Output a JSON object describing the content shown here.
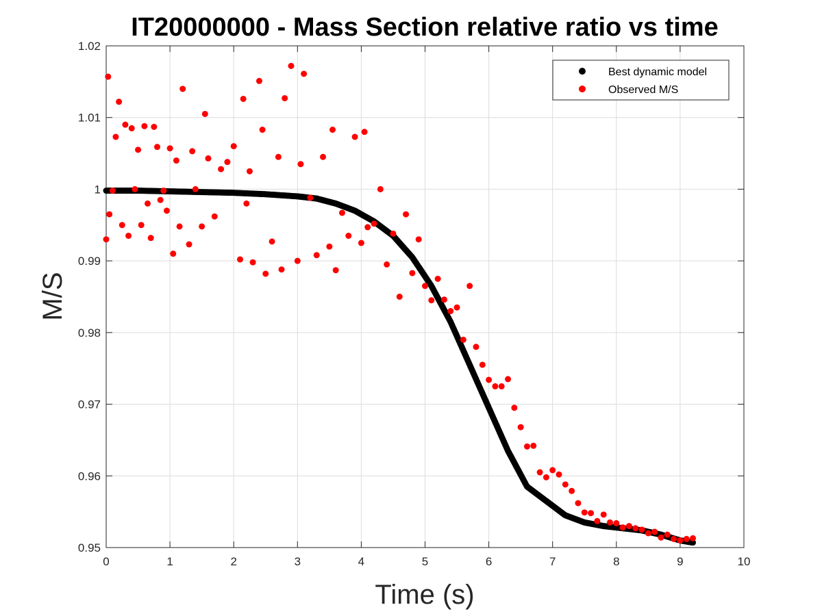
{
  "chart_data": {
    "type": "scatter",
    "title": "IT20000000 - Mass Section relative ratio vs time",
    "xlabel": "Time (s)",
    "ylabel": "M/S",
    "xlim": [
      0,
      10
    ],
    "ylim": [
      0.95,
      1.02
    ],
    "xticks": [
      0,
      1,
      2,
      3,
      4,
      5,
      6,
      7,
      8,
      9,
      10
    ],
    "yticks": [
      0.95,
      0.96,
      0.97,
      0.98,
      0.99,
      1.0,
      1.01,
      1.02
    ],
    "xtick_labels": [
      "0",
      "1",
      "2",
      "3",
      "4",
      "5",
      "6",
      "7",
      "8",
      "9",
      "10"
    ],
    "ytick_labels": [
      "0.95",
      "0.96",
      "0.97",
      "0.98",
      "0.99",
      "1",
      "1.01",
      "1.02"
    ],
    "grid": true,
    "legend_position": "top-right",
    "series": [
      {
        "name": "Best dynamic model",
        "color": "#000000",
        "marker": "filled-circle",
        "x": [
          0.0,
          0.5,
          1.0,
          1.5,
          2.0,
          2.5,
          3.0,
          3.3,
          3.6,
          3.9,
          4.2,
          4.5,
          4.8,
          5.1,
          5.4,
          5.7,
          6.0,
          6.3,
          6.6,
          6.9,
          7.2,
          7.5,
          7.8,
          8.1,
          8.4,
          8.7,
          9.0,
          9.2
        ],
        "y": [
          0.9998,
          0.9998,
          0.9997,
          0.9996,
          0.9995,
          0.9993,
          0.999,
          0.9987,
          0.998,
          0.997,
          0.9955,
          0.9935,
          0.9905,
          0.9865,
          0.9815,
          0.9755,
          0.9695,
          0.9635,
          0.9585,
          0.9565,
          0.9545,
          0.9535,
          0.953,
          0.9527,
          0.9524,
          0.9518,
          0.951,
          0.9507
        ]
      },
      {
        "name": "Observed M/S",
        "color": "#ff0000",
        "marker": "filled-circle",
        "x": [
          0.0,
          0.03,
          0.05,
          0.1,
          0.15,
          0.2,
          0.25,
          0.3,
          0.35,
          0.4,
          0.45,
          0.5,
          0.55,
          0.6,
          0.65,
          0.7,
          0.75,
          0.8,
          0.85,
          0.9,
          0.95,
          1.0,
          1.05,
          1.1,
          1.15,
          1.2,
          1.3,
          1.35,
          1.4,
          1.5,
          1.55,
          1.6,
          1.7,
          1.8,
          1.9,
          2.0,
          2.1,
          2.15,
          2.2,
          2.25,
          2.3,
          2.4,
          2.45,
          2.5,
          2.6,
          2.7,
          2.75,
          2.8,
          2.9,
          3.0,
          3.05,
          3.1,
          3.2,
          3.3,
          3.4,
          3.5,
          3.55,
          3.6,
          3.7,
          3.8,
          3.9,
          4.0,
          4.05,
          4.1,
          4.2,
          4.3,
          4.4,
          4.5,
          4.6,
          4.7,
          4.8,
          4.9,
          5.0,
          5.1,
          5.2,
          5.3,
          5.4,
          5.5,
          5.6,
          5.7,
          5.8,
          5.9,
          6.0,
          6.1,
          6.2,
          6.3,
          6.4,
          6.5,
          6.6,
          6.7,
          6.8,
          6.9,
          7.0,
          7.1,
          7.2,
          7.3,
          7.4,
          7.5,
          7.6,
          7.7,
          7.8,
          7.9,
          8.0,
          8.1,
          8.2,
          8.3,
          8.4,
          8.5,
          8.6,
          8.7,
          8.8,
          8.9,
          9.0,
          9.1,
          9.2
        ],
        "y": [
          0.993,
          1.0157,
          0.9965,
          0.9998,
          1.0073,
          1.0122,
          0.995,
          1.009,
          0.9935,
          1.0085,
          1.0,
          1.0055,
          0.995,
          1.0088,
          0.998,
          0.9932,
          1.0087,
          1.0059,
          0.9985,
          0.9998,
          0.997,
          1.0057,
          0.991,
          1.004,
          0.9948,
          1.014,
          0.9923,
          1.0053,
          1.0,
          0.9948,
          1.0105,
          1.0043,
          0.9962,
          1.0028,
          1.0038,
          1.006,
          0.9902,
          1.0126,
          0.998,
          1.0025,
          0.9898,
          1.0151,
          1.0083,
          0.9882,
          0.9927,
          1.0045,
          0.9888,
          1.0127,
          1.0172,
          0.99,
          1.0035,
          1.0161,
          0.9988,
          0.9908,
          1.0045,
          0.992,
          1.0083,
          0.9887,
          0.9967,
          0.9935,
          1.0073,
          0.9925,
          1.008,
          0.9947,
          0.9952,
          1.0,
          0.9895,
          0.9938,
          0.985,
          0.9965,
          0.9883,
          0.993,
          0.9865,
          0.9845,
          0.9875,
          0.9846,
          0.983,
          0.9835,
          0.979,
          0.9865,
          0.978,
          0.9755,
          0.9734,
          0.9725,
          0.9725,
          0.9735,
          0.9695,
          0.9668,
          0.9641,
          0.9642,
          0.9605,
          0.9598,
          0.9608,
          0.9602,
          0.9588,
          0.9579,
          0.9562,
          0.9549,
          0.9548,
          0.9537,
          0.9546,
          0.9535,
          0.9534,
          0.9528,
          0.953,
          0.9527,
          0.9525,
          0.952,
          0.9522,
          0.9514,
          0.9518,
          0.9512,
          0.951,
          0.9512,
          0.9513
        ]
      }
    ]
  }
}
